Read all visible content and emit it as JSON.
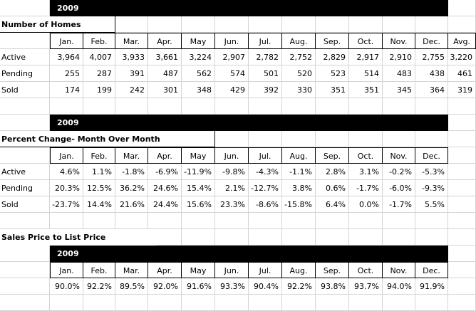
{
  "tables": [
    {
      "year": "2009",
      "title": "Number of Homes",
      "headers": [
        "Jan.",
        "Feb.",
        "Mar.",
        "Apr.",
        "May",
        "Jun.",
        "Jul.",
        "Aug.",
        "Sep.",
        "Oct.",
        "Nov.",
        "Dec.",
        "Avg."
      ],
      "rows": [
        {
          "label": "Active",
          "values": [
            "3,964",
            "4,007",
            "3,933",
            "3,661",
            "3,224",
            "2,907",
            "2,782",
            "2,752",
            "2,829",
            "2,917",
            "2,910",
            "2,755",
            "3,220"
          ]
        },
        {
          "label": "Pending",
          "values": [
            "255",
            "287",
            "391",
            "487",
            "562",
            "574",
            "501",
            "520",
            "523",
            "514",
            "483",
            "438",
            "461"
          ]
        },
        {
          "label": "Sold",
          "values": [
            "174",
            "199",
            "242",
            "301",
            "348",
            "429",
            "392",
            "330",
            "351",
            "351",
            "345",
            "364",
            "319"
          ]
        }
      ]
    },
    {
      "year": "2009",
      "title": "Percent Change- Month Over Month",
      "headers": [
        "Jan.",
        "Feb.",
        "Mar.",
        "Apr.",
        "May",
        "Jun.",
        "Jul.",
        "Aug.",
        "Sep.",
        "Oct.",
        "Nov.",
        "Dec."
      ],
      "rows": [
        {
          "label": "Active",
          "values": [
            "4.6%",
            "1.1%",
            "-1.8%",
            "-6.9%",
            "-11.9%",
            "-9.8%",
            "-4.3%",
            "-1.1%",
            "2.8%",
            "3.1%",
            "-0.2%",
            "-5.3%"
          ]
        },
        {
          "label": "Pending",
          "values": [
            "20.3%",
            "12.5%",
            "36.2%",
            "24.6%",
            "15.4%",
            "2.1%",
            "-12.7%",
            "3.8%",
            "0.6%",
            "-1.7%",
            "-6.0%",
            "-9.3%"
          ]
        },
        {
          "label": "Sold",
          "values": [
            "-23.7%",
            "14.4%",
            "21.6%",
            "24.4%",
            "15.6%",
            "23.3%",
            "-8.6%",
            "-15.8%",
            "6.4%",
            "0.0%",
            "-1.7%",
            "5.5%"
          ]
        }
      ]
    },
    {
      "year": "2009",
      "title": "Sales Price to List Price",
      "headers": [
        "Jan.",
        "Feb.",
        "Mar.",
        "Apr.",
        "May",
        "Jun.",
        "Jul.",
        "Aug.",
        "Sep.",
        "Oct.",
        "Nov.",
        "Dec."
      ],
      "rows": [
        {
          "label": "",
          "values": [
            "90.0%",
            "92.2%",
            "89.5%",
            "92.0%",
            "91.6%",
            "93.3%",
            "90.4%",
            "92.2%",
            "93.8%",
            "93.7%",
            "94.0%",
            "91.9%"
          ]
        }
      ]
    }
  ]
}
